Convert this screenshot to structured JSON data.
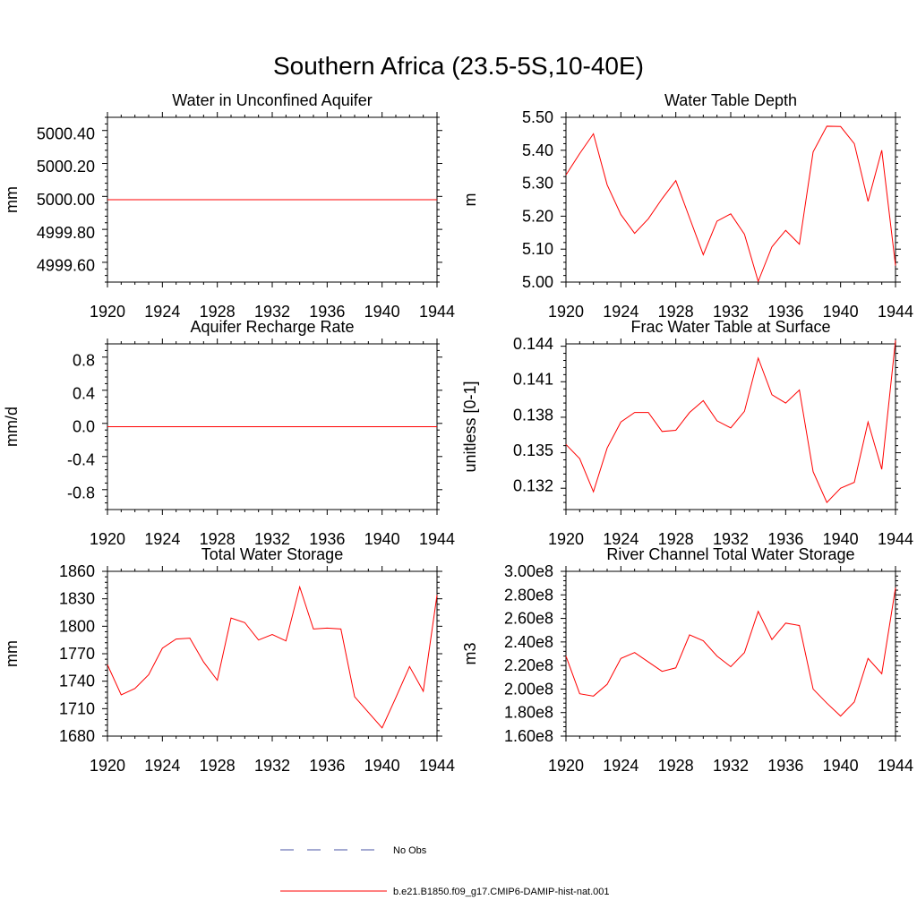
{
  "figure": {
    "title": "Southern Africa (23.5-5S,10-40E)"
  },
  "legend": {
    "entries": [
      {
        "label": "No Obs",
        "style": "dashed",
        "color": "#4a56a6"
      },
      {
        "label": "b.e21.B1850.f09_g17.CMIP6-DAMIP-hist-nat.001",
        "style": "solid",
        "color": "#ff0000"
      }
    ]
  },
  "chart_data": [
    {
      "type": "line",
      "title": "Water in Unconfined Aquifer",
      "ylabel": "mm",
      "xlim": [
        1920,
        1944
      ],
      "ylim": [
        4999.5,
        5000.5
      ],
      "xticks": [
        "1920",
        "1924",
        "1928",
        "1932",
        "1936",
        "1940",
        "1944"
      ],
      "yticks": [
        4999.6,
        4999.8,
        5000.0,
        5000.2,
        5000.4
      ],
      "ytick_labels": [
        "4999.60",
        "4999.80",
        "5000.00",
        "5000.20",
        "5000.40"
      ],
      "x": [
        1920,
        1921,
        1922,
        1923,
        1924,
        1925,
        1926,
        1927,
        1928,
        1929,
        1930,
        1931,
        1932,
        1933,
        1934,
        1935,
        1936,
        1937,
        1938,
        1939,
        1940,
        1941,
        1942,
        1943,
        1944
      ],
      "series": [
        {
          "name": "b.e21.B1850.f09_g17.CMIP6-DAMIP-hist-nat.001",
          "color": "#ff0000",
          "values": [
            5000.0,
            5000.0,
            5000.0,
            5000.0,
            5000.0,
            5000.0,
            5000.0,
            5000.0,
            5000.0,
            5000.0,
            5000.0,
            5000.0,
            5000.0,
            5000.0,
            5000.0,
            5000.0,
            5000.0,
            5000.0,
            5000.0,
            5000.0,
            5000.0,
            5000.0,
            5000.0,
            5000.0,
            5000.0
          ]
        }
      ]
    },
    {
      "type": "line",
      "title": "Water Table Depth",
      "ylabel": "m",
      "xlim": [
        1920,
        1944
      ],
      "ylim": [
        5.0,
        5.5
      ],
      "xticks": [
        "1920",
        "1924",
        "1928",
        "1932",
        "1936",
        "1940",
        "1944"
      ],
      "yticks": [
        5.0,
        5.1,
        5.2,
        5.3,
        5.4,
        5.5
      ],
      "ytick_labels": [
        "5.00",
        "5.10",
        "5.20",
        "5.30",
        "5.40",
        "5.50"
      ],
      "x": [
        1920,
        1921,
        1922,
        1923,
        1924,
        1925,
        1926,
        1927,
        1928,
        1929,
        1930,
        1931,
        1932,
        1933,
        1934,
        1935,
        1936,
        1937,
        1938,
        1939,
        1940,
        1941,
        1942,
        1943,
        1944
      ],
      "series": [
        {
          "name": "b.e21.B1850.f09_g17.CMIP6-DAMIP-hist-nat.001",
          "color": "#ff0000",
          "values": [
            5.325,
            5.39,
            5.45,
            5.295,
            5.205,
            5.148,
            5.192,
            5.253,
            5.308,
            5.195,
            5.083,
            5.185,
            5.207,
            5.145,
            5.002,
            5.107,
            5.157,
            5.115,
            5.395,
            5.473,
            5.472,
            5.42,
            5.245,
            5.4,
            5.05
          ]
        }
      ]
    },
    {
      "type": "line",
      "title": "Aquifer Recharge Rate",
      "ylabel": "mm/d",
      "xlim": [
        1920,
        1944
      ],
      "ylim": [
        -1.0,
        1.0
      ],
      "xticks": [
        "1920",
        "1924",
        "1928",
        "1932",
        "1936",
        "1940",
        "1944"
      ],
      "yticks": [
        -0.8,
        -0.4,
        0.0,
        0.4,
        0.8
      ],
      "ytick_labels": [
        "-0.8",
        "-0.4",
        "0.0",
        "0.4",
        "0.8"
      ],
      "x": [
        1920,
        1921,
        1922,
        1923,
        1924,
        1925,
        1926,
        1927,
        1928,
        1929,
        1930,
        1931,
        1932,
        1933,
        1934,
        1935,
        1936,
        1937,
        1938,
        1939,
        1940,
        1941,
        1942,
        1943,
        1944
      ],
      "series": [
        {
          "name": "b.e21.B1850.f09_g17.CMIP6-DAMIP-hist-nat.001",
          "color": "#ff0000",
          "values": [
            0,
            0,
            0,
            0,
            0,
            0,
            0,
            0,
            0,
            0,
            0,
            0,
            0,
            0,
            0,
            0,
            0,
            0,
            0,
            0,
            0,
            0,
            0,
            0,
            0
          ]
        }
      ]
    },
    {
      "type": "line",
      "title": "Frac Water Table at Surface",
      "ylabel": "unitless [0-1]",
      "xlim": [
        1920,
        1944
      ],
      "ylim": [
        0.13,
        0.144
      ],
      "xticks": [
        "1920",
        "1924",
        "1928",
        "1932",
        "1936",
        "1940",
        "1944"
      ],
      "yticks": [
        0.132,
        0.135,
        0.138,
        0.141,
        0.144
      ],
      "ytick_labels": [
        "0.132",
        "0.135",
        "0.138",
        "0.141",
        "0.144"
      ],
      "x": [
        1920,
        1921,
        1922,
        1923,
        1924,
        1925,
        1926,
        1927,
        1928,
        1929,
        1930,
        1931,
        1932,
        1933,
        1934,
        1935,
        1936,
        1937,
        1938,
        1939,
        1940,
        1941,
        1942,
        1943,
        1944
      ],
      "series": [
        {
          "name": "b.e21.B1850.f09_g17.CMIP6-DAMIP-hist-nat.001",
          "color": "#ff0000",
          "values": [
            0.1355,
            0.1343,
            0.1315,
            0.1352,
            0.1374,
            0.1382,
            0.1382,
            0.1366,
            0.1367,
            0.1382,
            0.1392,
            0.1375,
            0.1369,
            0.1383,
            0.1428,
            0.1397,
            0.139,
            0.1401,
            0.1332,
            0.1306,
            0.1318,
            0.1323,
            0.1374,
            0.1334,
            0.1443
          ]
        }
      ]
    },
    {
      "type": "line",
      "title": "Total Water Storage",
      "ylabel": "mm",
      "xlim": [
        1920,
        1944
      ],
      "ylim": [
        1680,
        1860
      ],
      "xticks": [
        "1920",
        "1924",
        "1928",
        "1932",
        "1936",
        "1940",
        "1944"
      ],
      "yticks": [
        1680,
        1710,
        1740,
        1770,
        1800,
        1830,
        1860
      ],
      "ytick_labels": [
        "1680",
        "1710",
        "1740",
        "1770",
        "1800",
        "1830",
        "1860"
      ],
      "x": [
        1920,
        1921,
        1922,
        1923,
        1924,
        1925,
        1926,
        1927,
        1928,
        1929,
        1930,
        1931,
        1932,
        1933,
        1934,
        1935,
        1936,
        1937,
        1938,
        1939,
        1940,
        1941,
        1942,
        1943,
        1944
      ],
      "series": [
        {
          "name": "b.e21.B1850.f09_g17.CMIP6-DAMIP-hist-nat.001",
          "color": "#ff0000",
          "values": [
            1758,
            1725,
            1732,
            1747,
            1776,
            1786,
            1787,
            1761,
            1741,
            1809,
            1804,
            1785,
            1791,
            1784,
            1843,
            1797,
            1798,
            1797,
            1723,
            1706,
            1689,
            1722,
            1756,
            1729,
            1834
          ]
        }
      ]
    },
    {
      "type": "line",
      "title": "River Channel Total Water Storage",
      "ylabel": "m3",
      "xlim": [
        1920,
        1944
      ],
      "ylim": [
        160000000,
        300000000
      ],
      "xticks": [
        "1920",
        "1924",
        "1928",
        "1932",
        "1936",
        "1940",
        "1944"
      ],
      "yticks": [
        160000000,
        180000000,
        200000000,
        220000000,
        240000000,
        260000000,
        280000000,
        300000000
      ],
      "ytick_labels": [
        "1.60e8",
        "1.80e8",
        "2.00e8",
        "2.20e8",
        "2.40e8",
        "2.60e8",
        "2.80e8",
        "3.00e8"
      ],
      "x": [
        1920,
        1921,
        1922,
        1923,
        1924,
        1925,
        1926,
        1927,
        1928,
        1929,
        1930,
        1931,
        1932,
        1933,
        1934,
        1935,
        1936,
        1937,
        1938,
        1939,
        1940,
        1941,
        1942,
        1943,
        1944
      ],
      "series": [
        {
          "name": "b.e21.B1850.f09_g17.CMIP6-DAMIP-hist-nat.001",
          "color": "#ff0000",
          "values": [
            228000000,
            196000000,
            194000000,
            204000000,
            226000000,
            231000000,
            223000000,
            215000000,
            218000000,
            246000000,
            241000000,
            228000000,
            219000000,
            231000000,
            266000000,
            242000000,
            256000000,
            254000000,
            200000000,
            188000000,
            177000000,
            189000000,
            226000000,
            213000000,
            286000000
          ]
        }
      ]
    }
  ]
}
